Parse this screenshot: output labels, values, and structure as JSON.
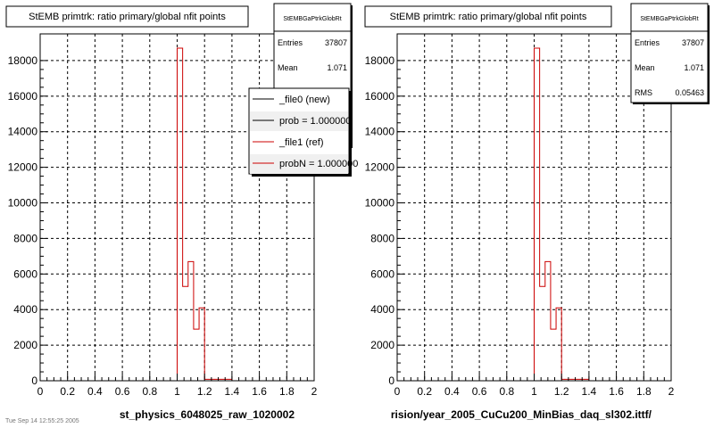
{
  "chart_data": [
    {
      "type": "histogram",
      "title": "StEMB primtrk: ratio primary/global nfit points",
      "xlabel": "st_physics_6048025_raw_1020002",
      "ylabel": "",
      "xlim": [
        0,
        2
      ],
      "ylim": [
        0,
        19500
      ],
      "x_ticks": [
        "0",
        "0.2",
        "0.4",
        "0.6",
        "0.8",
        "1",
        "1.2",
        "1.4",
        "1.6",
        "1.8",
        "2"
      ],
      "y_ticks": [
        "0",
        "2000",
        "4000",
        "6000",
        "8000",
        "10000",
        "12000",
        "14000",
        "16000",
        "18000"
      ],
      "grid": true,
      "stats": {
        "name": "StEMBGaPtrkGlobRt",
        "entries_label": "Entries",
        "entries": "37807",
        "mean_label": "Mean",
        "mean": "1.071"
      },
      "legend": {
        "placement": "top-right",
        "entries": [
          {
            "label": "_file0 (new)",
            "color": "#000000"
          },
          {
            "label": "prob = 1.000000",
            "color": "#000000"
          },
          {
            "label": "_file1 (ref)",
            "color": "#cc0000"
          },
          {
            "label": "probN = 1.000000",
            "color": "#cc0000"
          }
        ]
      },
      "series": [
        {
          "color": "#cc0000",
          "bins": [
            {
              "x0": 0.0,
              "x1": 1.0,
              "y": 0
            },
            {
              "x0": 1.0,
              "x1": 1.04,
              "y": 18700
            },
            {
              "x0": 1.04,
              "x1": 1.08,
              "y": 5300
            },
            {
              "x0": 1.08,
              "x1": 1.12,
              "y": 6700
            },
            {
              "x0": 1.12,
              "x1": 1.16,
              "y": 2900
            },
            {
              "x0": 1.16,
              "x1": 1.2,
              "y": 4100
            },
            {
              "x0": 1.2,
              "x1": 1.4,
              "y": 80
            },
            {
              "x0": 1.4,
              "x1": 2.0,
              "y": 0
            }
          ]
        }
      ]
    },
    {
      "type": "histogram",
      "title": "StEMB primtrk: ratio primary/global nfit points",
      "xlabel": "rision/year_2005_CuCu200_MinBias_daq_sl302.ittf/",
      "ylabel": "",
      "xlim": [
        0,
        2
      ],
      "ylim": [
        0,
        19500
      ],
      "x_ticks": [
        "0",
        "0.2",
        "0.4",
        "0.6",
        "0.8",
        "1",
        "1.2",
        "1.4",
        "1.6",
        "1.8",
        "2"
      ],
      "y_ticks": [
        "0",
        "2000",
        "4000",
        "6000",
        "8000",
        "10000",
        "12000",
        "14000",
        "16000",
        "18000"
      ],
      "grid": true,
      "stats": {
        "name": "StEMBGaPtrkGlobRt",
        "entries_label": "Entries",
        "entries": "37807",
        "mean_label": "Mean",
        "mean": "1.071",
        "rms_label": "RMS",
        "rms": "0.05463"
      },
      "series": [
        {
          "color": "#cc0000",
          "bins": [
            {
              "x0": 0.0,
              "x1": 1.0,
              "y": 0
            },
            {
              "x0": 1.0,
              "x1": 1.04,
              "y": 18700
            },
            {
              "x0": 1.04,
              "x1": 1.08,
              "y": 5300
            },
            {
              "x0": 1.08,
              "x1": 1.12,
              "y": 6700
            },
            {
              "x0": 1.12,
              "x1": 1.16,
              "y": 2900
            },
            {
              "x0": 1.16,
              "x1": 1.2,
              "y": 4100
            },
            {
              "x0": 1.2,
              "x1": 1.4,
              "y": 80
            },
            {
              "x0": 1.4,
              "x1": 2.0,
              "y": 0
            }
          ]
        }
      ]
    }
  ],
  "footer": "Tue Sep 14 12:55:25 2005"
}
